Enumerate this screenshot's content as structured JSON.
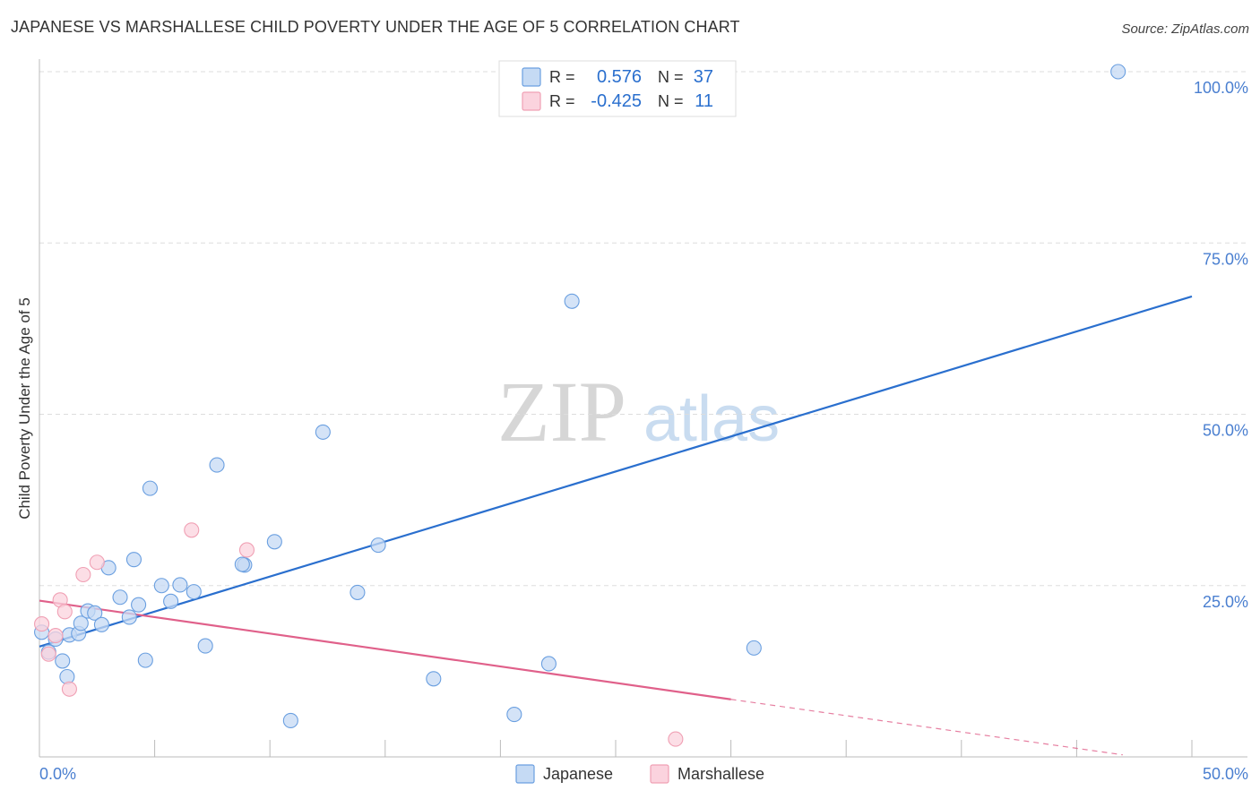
{
  "title": "JAPANESE VS MARSHALLESE CHILD POVERTY UNDER THE AGE OF 5 CORRELATION CHART",
  "source": "Source: ZipAtlas.com",
  "watermark": {
    "zip": "ZIP",
    "atlas": "atlas"
  },
  "chart_data": {
    "type": "scatter",
    "title": "JAPANESE VS MARSHALLESE CHILD POVERTY UNDER THE AGE OF 5 CORRELATION CHART",
    "xlabel": "",
    "ylabel": "Child Poverty Under the Age of 5",
    "xlim": [
      0,
      50
    ],
    "ylim": [
      0,
      100
    ],
    "x_tick_labels": [
      "0.0%",
      "50.0%"
    ],
    "y_tick_labels": [
      "100.0%",
      "75.0%",
      "50.0%",
      "25.0%"
    ],
    "y_tick_values": [
      100,
      75,
      50,
      25
    ],
    "grid": true,
    "legend_position": "bottom",
    "series": [
      {
        "name": "Japanese",
        "color": "#6a9fe0",
        "fill": "#c5daf4",
        "trend_color": "#2a6fce",
        "r_value": "0.576",
        "n_value": "37",
        "trend": {
          "x0": 0,
          "y0": 16.1,
          "x1": 50,
          "y1": 67.2
        },
        "points": [
          [
            0.1,
            18.2
          ],
          [
            0.4,
            15.3
          ],
          [
            0.7,
            17.2
          ],
          [
            1.0,
            14.0
          ],
          [
            1.3,
            17.8
          ],
          [
            1.7,
            18.0
          ],
          [
            1.8,
            19.5
          ],
          [
            2.1,
            21.3
          ],
          [
            2.4,
            21.0
          ],
          [
            2.7,
            19.3
          ],
          [
            3.0,
            27.6
          ],
          [
            3.5,
            23.3
          ],
          [
            3.9,
            20.4
          ],
          [
            4.1,
            28.8
          ],
          [
            4.3,
            22.2
          ],
          [
            4.6,
            14.1
          ],
          [
            4.8,
            39.2
          ],
          [
            5.3,
            25.0
          ],
          [
            5.7,
            22.7
          ],
          [
            6.1,
            25.1
          ],
          [
            6.7,
            24.1
          ],
          [
            7.2,
            16.2
          ],
          [
            7.7,
            42.6
          ],
          [
            8.9,
            28.0
          ],
          [
            10.2,
            31.4
          ],
          [
            10.9,
            5.3
          ],
          [
            12.3,
            47.4
          ],
          [
            13.8,
            24.0
          ],
          [
            14.7,
            30.9
          ],
          [
            17.1,
            11.4
          ],
          [
            20.6,
            6.2
          ],
          [
            22.1,
            13.6
          ],
          [
            23.1,
            66.5
          ],
          [
            31.0,
            15.9
          ],
          [
            46.8,
            100.0
          ],
          [
            1.2,
            11.7
          ],
          [
            8.8,
            28.1
          ]
        ]
      },
      {
        "name": "Marshallese",
        "color": "#f0a0b4",
        "fill": "#fbd3de",
        "trend_color": "#e0608a",
        "r_value": "-0.425",
        "n_value": "11",
        "trend": {
          "x0": 0,
          "y0": 22.8,
          "x1": 30,
          "y1": 8.4,
          "dash_x1": 47.0,
          "dash_y1": 0.3
        },
        "points": [
          [
            0.4,
            15.0
          ],
          [
            0.7,
            17.7
          ],
          [
            0.9,
            22.9
          ],
          [
            1.1,
            21.2
          ],
          [
            1.3,
            9.9
          ],
          [
            1.9,
            26.6
          ],
          [
            2.5,
            28.4
          ],
          [
            6.6,
            33.1
          ],
          [
            9.0,
            30.2
          ],
          [
            27.6,
            2.6
          ],
          [
            0.1,
            19.4
          ]
        ]
      }
    ]
  },
  "legend": {
    "r_label": "R =",
    "n_label": "N ="
  }
}
